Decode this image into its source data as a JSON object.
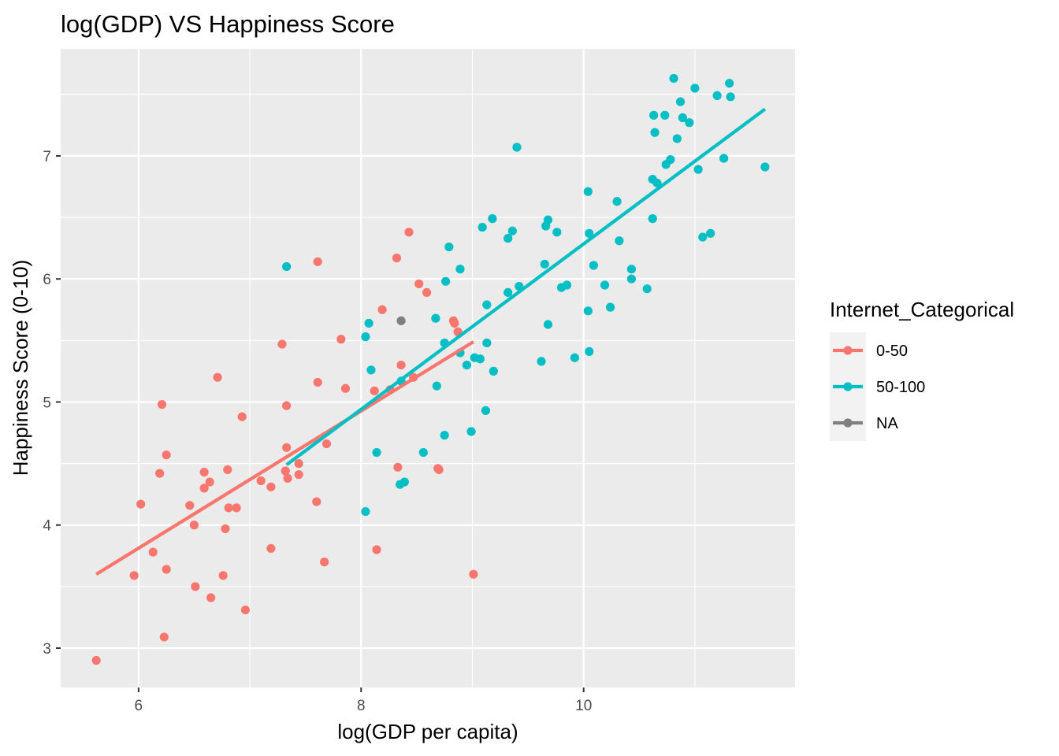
{
  "chart_data": {
    "type": "scatter",
    "title": "log(GDP) VS Happiness Score",
    "xlabel": "log(GDP per capita)",
    "ylabel": "Happiness Score (0-10)",
    "xlim": [
      5.3,
      11.9
    ],
    "ylim": [
      2.68,
      7.87
    ],
    "x_ticks": [
      6,
      8,
      10
    ],
    "y_ticks": [
      3,
      4,
      5,
      6,
      7
    ],
    "grid": true,
    "legend": {
      "title": "Internet_Categorical",
      "position": "right",
      "entries": [
        {
          "label": "0-50",
          "color": "#F8766D"
        },
        {
          "label": "50-100",
          "color": "#00BFC4"
        },
        {
          "label": "NA",
          "color": "#7F7F7F"
        }
      ]
    },
    "series": [
      {
        "name": "0-50",
        "color": "#F8766D",
        "points": [
          [
            5.62,
            2.9
          ],
          [
            5.96,
            3.59
          ],
          [
            6.02,
            4.17
          ],
          [
            6.13,
            3.78
          ],
          [
            6.19,
            4.42
          ],
          [
            6.21,
            4.98
          ],
          [
            6.23,
            3.09
          ],
          [
            6.25,
            4.57
          ],
          [
            6.25,
            3.64
          ],
          [
            6.46,
            4.16
          ],
          [
            6.5,
            4.0
          ],
          [
            6.51,
            3.5
          ],
          [
            6.59,
            4.43
          ],
          [
            6.59,
            4.3
          ],
          [
            6.64,
            4.35
          ],
          [
            6.65,
            3.41
          ],
          [
            6.71,
            5.2
          ],
          [
            6.76,
            3.59
          ],
          [
            6.78,
            3.97
          ],
          [
            6.8,
            4.45
          ],
          [
            6.81,
            4.14
          ],
          [
            6.88,
            4.14
          ],
          [
            6.93,
            4.88
          ],
          [
            6.96,
            3.31
          ],
          [
            7.1,
            4.36
          ],
          [
            7.19,
            4.31
          ],
          [
            7.19,
            3.81
          ],
          [
            7.29,
            5.47
          ],
          [
            7.32,
            4.44
          ],
          [
            7.33,
            4.97
          ],
          [
            7.33,
            4.63
          ],
          [
            7.34,
            4.38
          ],
          [
            7.44,
            4.41
          ],
          [
            7.44,
            4.5
          ],
          [
            7.6,
            4.19
          ],
          [
            7.61,
            5.16
          ],
          [
            7.61,
            6.14
          ],
          [
            7.67,
            3.7
          ],
          [
            7.69,
            4.66
          ],
          [
            7.82,
            5.51
          ],
          [
            7.86,
            5.11
          ],
          [
            8.12,
            5.09
          ],
          [
            8.14,
            3.8
          ],
          [
            8.19,
            5.75
          ],
          [
            8.26,
            5.1
          ],
          [
            8.32,
            6.17
          ],
          [
            8.33,
            4.47
          ],
          [
            8.36,
            5.3
          ],
          [
            8.43,
            6.38
          ],
          [
            8.47,
            5.2
          ],
          [
            8.52,
            5.96
          ],
          [
            8.59,
            5.89
          ],
          [
            8.69,
            4.46
          ],
          [
            8.7,
            4.45
          ],
          [
            8.83,
            5.66
          ],
          [
            8.84,
            5.64
          ],
          [
            8.87,
            5.57
          ],
          [
            9.01,
            3.6
          ]
        ],
        "fit": {
          "x": [
            5.62,
            9.01
          ],
          "y": [
            3.6,
            5.49
          ]
        }
      },
      {
        "name": "50-100",
        "color": "#00BFC4",
        "points": [
          [
            7.33,
            6.1
          ],
          [
            8.04,
            4.11
          ],
          [
            8.04,
            5.53
          ],
          [
            8.07,
            5.64
          ],
          [
            8.09,
            5.26
          ],
          [
            8.14,
            4.59
          ],
          [
            8.35,
            4.33
          ],
          [
            8.36,
            5.17
          ],
          [
            8.39,
            4.35
          ],
          [
            8.56,
            4.59
          ],
          [
            8.67,
            5.68
          ],
          [
            8.68,
            5.13
          ],
          [
            8.75,
            4.73
          ],
          [
            8.75,
            5.48
          ],
          [
            8.76,
            5.98
          ],
          [
            8.79,
            6.26
          ],
          [
            8.89,
            6.08
          ],
          [
            8.89,
            5.4
          ],
          [
            8.95,
            5.3
          ],
          [
            8.99,
            4.76
          ],
          [
            9.02,
            5.36
          ],
          [
            9.07,
            5.35
          ],
          [
            9.09,
            6.42
          ],
          [
            9.12,
            4.93
          ],
          [
            9.13,
            5.79
          ],
          [
            9.13,
            5.48
          ],
          [
            9.18,
            6.49
          ],
          [
            9.19,
            5.25
          ],
          [
            9.32,
            6.33
          ],
          [
            9.32,
            5.89
          ],
          [
            9.36,
            6.39
          ],
          [
            9.4,
            7.07
          ],
          [
            9.42,
            5.94
          ],
          [
            9.62,
            5.33
          ],
          [
            9.65,
            6.12
          ],
          [
            9.66,
            6.43
          ],
          [
            9.68,
            6.48
          ],
          [
            9.68,
            5.63
          ],
          [
            9.76,
            6.38
          ],
          [
            9.8,
            5.93
          ],
          [
            9.85,
            5.95
          ],
          [
            9.92,
            5.36
          ],
          [
            10.04,
            6.71
          ],
          [
            10.04,
            5.74
          ],
          [
            10.05,
            6.37
          ],
          [
            10.05,
            5.41
          ],
          [
            10.09,
            6.11
          ],
          [
            10.19,
            5.95
          ],
          [
            10.24,
            5.77
          ],
          [
            10.3,
            6.63
          ],
          [
            10.32,
            6.31
          ],
          [
            10.43,
            6.08
          ],
          [
            10.43,
            6.0
          ],
          [
            10.57,
            5.92
          ],
          [
            10.62,
            6.81
          ],
          [
            10.62,
            6.49
          ],
          [
            10.63,
            7.33
          ],
          [
            10.64,
            7.19
          ],
          [
            10.66,
            6.78
          ],
          [
            10.73,
            7.33
          ],
          [
            10.74,
            6.93
          ],
          [
            10.78,
            6.97
          ],
          [
            10.81,
            7.63
          ],
          [
            10.84,
            7.14
          ],
          [
            10.87,
            7.44
          ],
          [
            10.89,
            7.31
          ],
          [
            10.95,
            7.27
          ],
          [
            11.0,
            7.55
          ],
          [
            11.03,
            6.89
          ],
          [
            11.07,
            6.34
          ],
          [
            11.14,
            6.37
          ],
          [
            11.2,
            7.49
          ],
          [
            11.26,
            6.98
          ],
          [
            11.31,
            7.59
          ],
          [
            11.32,
            7.48
          ],
          [
            11.63,
            6.91
          ]
        ],
        "fit": {
          "x": [
            7.33,
            11.63
          ],
          "y": [
            4.49,
            7.38
          ]
        }
      },
      {
        "name": "NA",
        "color": "#7F7F7F",
        "points": [
          [
            8.36,
            5.66
          ]
        ]
      }
    ]
  }
}
